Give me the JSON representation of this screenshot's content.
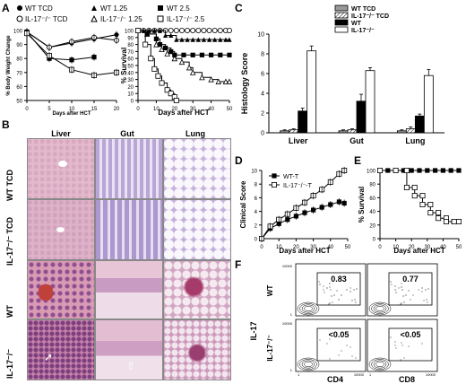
{
  "panels": {
    "A": {
      "letter": "A"
    },
    "B": {
      "letter": "B",
      "cols": [
        "Liver",
        "Gut",
        "Lung"
      ],
      "rows": [
        "WT TCD",
        "IL-17⁻/⁻ TCD",
        "WT",
        "IL-17⁻/⁻"
      ]
    },
    "C": {
      "letter": "C"
    },
    "D": {
      "letter": "D"
    },
    "E": {
      "letter": "E"
    },
    "F": {
      "letter": "F"
    }
  },
  "legendA": [
    {
      "label": "WT TCD",
      "marker": "filled-circle"
    },
    {
      "label": "IL-17⁻/⁻ TCD",
      "marker": "open-circle"
    },
    {
      "label": "WT 1.25",
      "marker": "filled-triangle"
    },
    {
      "label": "IL-17⁻/⁻ 1.25",
      "marker": "open-triangle"
    },
    {
      "label": "WT 2.5",
      "marker": "filled-square"
    },
    {
      "label": "IL-17⁻/⁻ 2.5",
      "marker": "open-square"
    }
  ],
  "flowF": {
    "row_label": "IL-17",
    "rows": [
      "WT",
      "IL-17⁻/⁻"
    ],
    "cols": [
      "CD4",
      "CD8"
    ],
    "values": [
      [
        "0.83",
        "0.77"
      ],
      [
        "<0.05",
        "<0.05"
      ]
    ],
    "yticks": [
      "1",
      "10",
      "100",
      "1000",
      "10000"
    ],
    "xticks": [
      "1",
      "10",
      "100",
      "1000",
      "10000"
    ]
  },
  "chart_data": [
    {
      "id": "A-weight",
      "type": "line",
      "xlabel": "Days after  HCT",
      "ylabel": "% Body Weight Change",
      "xlim": [
        0,
        20
      ],
      "ylim": [
        50,
        100
      ],
      "xticks": [
        0,
        5,
        10,
        15,
        20
      ],
      "yticks": [
        50,
        60,
        70,
        80,
        90,
        100
      ],
      "series": [
        {
          "name": "WT TCD",
          "x": [
            0,
            5,
            10,
            15,
            20
          ],
          "y": [
            99,
            88,
            91,
            94,
            97
          ]
        },
        {
          "name": "IL-17⁻/⁻ TCD",
          "x": [
            0,
            5,
            10,
            15,
            20
          ],
          "y": [
            99,
            88,
            92,
            95,
            93
          ]
        },
        {
          "name": "WT 2.5",
          "x": [
            0,
            5,
            10,
            15
          ],
          "y": [
            99,
            80,
            79,
            81
          ]
        },
        {
          "name": "IL-17⁻/⁻ 2.5",
          "x": [
            0,
            5,
            10,
            15,
            20
          ],
          "y": [
            98,
            82,
            72,
            68,
            70
          ]
        }
      ]
    },
    {
      "id": "A-survival",
      "type": "line",
      "xlabel": "Days after HCT",
      "ylabel": "% Survival",
      "xlim": [
        0,
        50
      ],
      "ylim": [
        0,
        100
      ],
      "xticks": [
        0,
        10,
        20,
        30,
        40,
        50
      ],
      "yticks": [
        0,
        10,
        20,
        30,
        40,
        50,
        60,
        70,
        80,
        90,
        100
      ],
      "series": [
        {
          "name": "WT TCD",
          "x": [
            0,
            3,
            6,
            9,
            12,
            15,
            18,
            21,
            24,
            27,
            30,
            33,
            36,
            39,
            42,
            45,
            48,
            50
          ],
          "y": [
            100,
            100,
            100,
            100,
            100,
            100,
            100,
            100,
            100,
            100,
            100,
            100,
            100,
            100,
            100,
            100,
            100,
            100
          ]
        },
        {
          "name": "IL-17⁻/⁻ TCD",
          "x": [
            0,
            3,
            6,
            9,
            12,
            15,
            18,
            21,
            24,
            27,
            30,
            33,
            36,
            39,
            42,
            45,
            48,
            50
          ],
          "y": [
            100,
            100,
            100,
            100,
            100,
            100,
            100,
            100,
            100,
            100,
            100,
            100,
            100,
            100,
            100,
            100,
            100,
            100
          ]
        },
        {
          "name": "WT 1.25",
          "x": [
            0,
            3,
            6,
            9,
            12,
            15,
            18,
            21,
            24,
            27,
            30,
            33,
            36,
            39,
            42,
            45,
            48,
            50
          ],
          "y": [
            100,
            100,
            100,
            100,
            100,
            93,
            93,
            87,
            87,
            87,
            87,
            87,
            87,
            87,
            87,
            87,
            87,
            87
          ]
        },
        {
          "name": "IL-17⁻/⁻ 1.25",
          "x": [
            0,
            5,
            10,
            13,
            16,
            20,
            24,
            28,
            30,
            35,
            40,
            44,
            48,
            50
          ],
          "y": [
            100,
            95,
            80,
            73,
            67,
            60,
            55,
            47,
            40,
            33,
            30,
            27,
            27,
            27
          ]
        },
        {
          "name": "WT 2.5",
          "x": [
            0,
            5,
            10,
            12,
            15,
            18,
            20,
            25,
            30,
            35,
            40,
            45,
            50
          ],
          "y": [
            100,
            95,
            88,
            80,
            75,
            70,
            65,
            65,
            65,
            65,
            65,
            65,
            65
          ]
        },
        {
          "name": "IL-17⁻/⁻ 2.5",
          "x": [
            0,
            4,
            7,
            9,
            11,
            13,
            16,
            18,
            20,
            21
          ],
          "y": [
            100,
            80,
            60,
            45,
            35,
            25,
            15,
            10,
            5,
            0
          ]
        }
      ]
    },
    {
      "id": "C",
      "type": "bar",
      "ylabel": "Histology Score",
      "categories": [
        "Liver",
        "Gut",
        "Lung"
      ],
      "ylim": [
        0,
        10
      ],
      "yticks": [
        0,
        2,
        4,
        6,
        8,
        10
      ],
      "series": [
        {
          "name": "WT TCD",
          "values": [
            0.2,
            0.2,
            0.2
          ]
        },
        {
          "name": "IL-17⁻/⁻ TCD",
          "values": [
            0.3,
            0.3,
            0.4
          ]
        },
        {
          "name": "WT",
          "values": [
            2.2,
            3.2,
            1.7
          ]
        },
        {
          "name": "IL-17⁻/⁻",
          "values": [
            8.3,
            6.3,
            5.8
          ]
        }
      ],
      "errors": [
        [
          0.1,
          0.1,
          0.1
        ],
        [
          0.1,
          0.1,
          0.2
        ],
        [
          0.3,
          0.7,
          0.2
        ],
        [
          0.5,
          0.3,
          0.6
        ]
      ]
    },
    {
      "id": "D",
      "type": "line",
      "xlabel": "Days after  HCT",
      "ylabel": "Clinical Score",
      "xlim": [
        0,
        50
      ],
      "ylim": [
        0,
        10
      ],
      "xticks": [
        0,
        10,
        20,
        30,
        40,
        50
      ],
      "yticks": [
        0,
        2,
        4,
        6,
        8,
        10
      ],
      "series": [
        {
          "name": "WT-T",
          "x": [
            0,
            5,
            10,
            15,
            20,
            25,
            30,
            35,
            40,
            45,
            48
          ],
          "y": [
            0,
            1.5,
            2.2,
            2.8,
            3.3,
            3.8,
            4.2,
            4.6,
            5,
            5.4,
            5.2
          ]
        },
        {
          "name": "IL-17⁻/⁻-T",
          "x": [
            0,
            5,
            10,
            15,
            20,
            25,
            30,
            35,
            40,
            45,
            48
          ],
          "y": [
            0,
            1.8,
            2.8,
            3.6,
            4.5,
            5.3,
            6.3,
            7.2,
            8.3,
            9.5,
            10
          ]
        }
      ]
    },
    {
      "id": "E",
      "type": "line",
      "xlabel": "Days after  HCT",
      "ylabel": "% Survival",
      "xlim": [
        0,
        50
      ],
      "ylim": [
        0,
        100
      ],
      "xticks": [
        0,
        10,
        20,
        30,
        40,
        50
      ],
      "yticks": [
        0,
        20,
        40,
        60,
        80,
        100
      ],
      "series": [
        {
          "x": [
            0,
            5,
            10,
            15,
            20,
            25,
            30,
            35,
            40,
            45,
            50
          ],
          "y": [
            100,
            100,
            100,
            100,
            100,
            100,
            100,
            100,
            100,
            100,
            100
          ]
        },
        {
          "x": [
            0,
            10,
            17,
            17,
            22,
            22,
            27,
            27,
            32,
            32,
            37,
            37,
            42,
            42,
            47,
            47,
            50
          ],
          "y": [
            100,
            100,
            100,
            75,
            75,
            63,
            63,
            50,
            50,
            38,
            38,
            30,
            30,
            25,
            25,
            25,
            25
          ]
        }
      ]
    }
  ]
}
